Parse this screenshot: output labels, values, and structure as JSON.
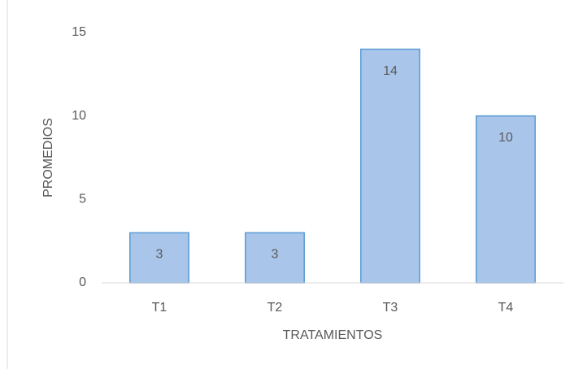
{
  "chart_data": {
    "type": "bar",
    "categories": [
      "T1",
      "T2",
      "T3",
      "T4"
    ],
    "values": [
      3,
      3,
      14,
      10
    ],
    "color": "#a9c6ea",
    "edgecolor": "#5b9bd5",
    "ylim": [
      0,
      15
    ],
    "yticks": [
      0,
      5,
      10,
      15
    ],
    "grid": false,
    "xlabel": "TRATAMIENTOS",
    "ylabel": "PROMEDIOS"
  }
}
